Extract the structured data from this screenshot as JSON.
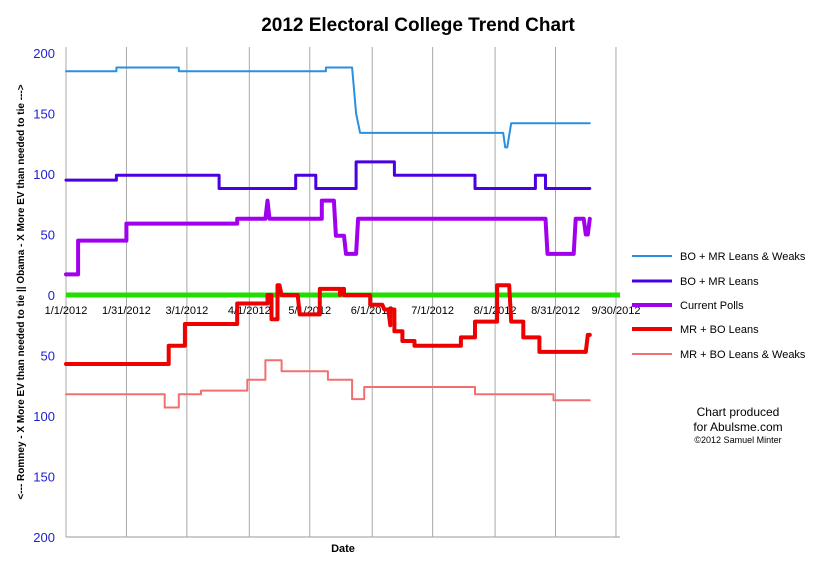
{
  "chart_data": {
    "type": "line",
    "title": "2012 Electoral College Trend Chart",
    "xlabel": "Date",
    "ylabel": "<--- Romney - X More EV than needed to tie ||  Obama - X More EV than needed to tie --->",
    "xlim": [
      "2012-01-01",
      "2012-10-02"
    ],
    "ylim": [
      -200,
      200
    ],
    "x_tick_labels": [
      "1/1/2012",
      "1/31/2012",
      "3/1/2012",
      "4/1/2012",
      "5/1/2012",
      "6/1/2012",
      "7/1/2012",
      "8/1/2012",
      "8/31/2012",
      "9/30/2012"
    ],
    "x_ticks": [
      "2012-01-01",
      "2012-01-31",
      "2012-03-01",
      "2012-04-01",
      "2012-05-01",
      "2012-06-01",
      "2012-07-01",
      "2012-08-01",
      "2012-08-31",
      "2012-09-30"
    ],
    "y_ticks": [
      200,
      150,
      100,
      50,
      0,
      -50,
      -100,
      -150,
      -200
    ],
    "y_tick_labels": [
      "200",
      "150",
      "100",
      "50",
      "0",
      "50",
      "100",
      "150",
      "200"
    ],
    "zero_line": {
      "color": "#22dd00"
    },
    "legend_position": "right",
    "series": [
      {
        "name": "BO + MR Leans & Weaks",
        "color": "#2b8fe0",
        "width": 2,
        "points": [
          [
            "2012-01-01",
            185
          ],
          [
            "2012-01-26",
            185
          ],
          [
            "2012-01-26",
            188
          ],
          [
            "2012-02-26",
            188
          ],
          [
            "2012-02-26",
            185
          ],
          [
            "2012-05-09",
            185
          ],
          [
            "2012-05-09",
            188
          ],
          [
            "2012-05-22",
            188
          ],
          [
            "2012-05-24",
            150
          ],
          [
            "2012-05-26",
            134
          ],
          [
            "2012-08-05",
            134
          ],
          [
            "2012-08-06",
            122
          ],
          [
            "2012-08-07",
            122
          ],
          [
            "2012-08-09",
            142
          ],
          [
            "2012-09-17",
            142
          ]
        ]
      },
      {
        "name": "BO + MR Leans",
        "color": "#4a00e0",
        "width": 3,
        "points": [
          [
            "2012-01-01",
            95
          ],
          [
            "2012-01-26",
            95
          ],
          [
            "2012-01-26",
            99
          ],
          [
            "2012-03-17",
            99
          ],
          [
            "2012-03-17",
            88
          ],
          [
            "2012-04-24",
            88
          ],
          [
            "2012-04-24",
            99
          ],
          [
            "2012-05-04",
            99
          ],
          [
            "2012-05-04",
            88
          ],
          [
            "2012-05-24",
            88
          ],
          [
            "2012-05-24",
            110
          ],
          [
            "2012-06-12",
            110
          ],
          [
            "2012-06-12",
            99
          ],
          [
            "2012-07-22",
            99
          ],
          [
            "2012-07-22",
            88
          ],
          [
            "2012-08-21",
            88
          ],
          [
            "2012-08-21",
            99
          ],
          [
            "2012-08-26",
            99
          ],
          [
            "2012-08-26",
            88
          ],
          [
            "2012-09-17",
            88
          ]
        ]
      },
      {
        "name": "Current Polls",
        "color": "#a100ee",
        "width": 4,
        "points": [
          [
            "2012-01-01",
            17
          ],
          [
            "2012-01-07",
            17
          ],
          [
            "2012-01-07",
            45
          ],
          [
            "2012-01-31",
            45
          ],
          [
            "2012-01-31",
            59
          ],
          [
            "2012-03-26",
            59
          ],
          [
            "2012-03-26",
            63
          ],
          [
            "2012-04-09",
            63
          ],
          [
            "2012-04-10",
            78
          ],
          [
            "2012-04-11",
            63
          ],
          [
            "2012-04-29",
            63
          ],
          [
            "2012-04-29",
            63
          ],
          [
            "2012-05-07",
            63
          ],
          [
            "2012-05-07",
            78
          ],
          [
            "2012-05-13",
            78
          ],
          [
            "2012-05-14",
            49
          ],
          [
            "2012-05-18",
            49
          ],
          [
            "2012-05-19",
            34
          ],
          [
            "2012-05-24",
            34
          ],
          [
            "2012-05-25",
            63
          ],
          [
            "2012-08-26",
            63
          ],
          [
            "2012-08-27",
            34
          ],
          [
            "2012-09-09",
            34
          ],
          [
            "2012-09-10",
            63
          ],
          [
            "2012-09-14",
            63
          ],
          [
            "2012-09-15",
            50
          ],
          [
            "2012-09-16",
            50
          ],
          [
            "2012-09-17",
            63
          ]
        ]
      },
      {
        "name": "MR + BO Leans",
        "color": "#ee0000",
        "width": 4,
        "points": [
          [
            "2012-01-01",
            -57
          ],
          [
            "2012-02-21",
            -57
          ],
          [
            "2012-02-21",
            -42
          ],
          [
            "2012-02-29",
            -42
          ],
          [
            "2012-02-29",
            -24
          ],
          [
            "2012-03-26",
            -24
          ],
          [
            "2012-03-26",
            -7
          ],
          [
            "2012-04-10",
            -7
          ],
          [
            "2012-04-10",
            0
          ],
          [
            "2012-04-12",
            0
          ],
          [
            "2012-04-12",
            -20
          ],
          [
            "2012-04-15",
            -20
          ],
          [
            "2012-04-15",
            8
          ],
          [
            "2012-04-16",
            8
          ],
          [
            "2012-04-17",
            0
          ],
          [
            "2012-04-25",
            0
          ],
          [
            "2012-04-26",
            -16
          ],
          [
            "2012-05-06",
            -16
          ],
          [
            "2012-05-06",
            5
          ],
          [
            "2012-05-16",
            5
          ],
          [
            "2012-05-16",
            0
          ],
          [
            "2012-05-17",
            5
          ],
          [
            "2012-05-18",
            5
          ],
          [
            "2012-05-18",
            0
          ],
          [
            "2012-05-31",
            0
          ],
          [
            "2012-05-31",
            -8
          ],
          [
            "2012-06-06",
            -8
          ],
          [
            "2012-06-07",
            -12
          ],
          [
            "2012-06-09",
            -12
          ],
          [
            "2012-06-10",
            -25
          ],
          [
            "2012-06-10",
            -12
          ],
          [
            "2012-06-12",
            -12
          ],
          [
            "2012-06-12",
            -30
          ],
          [
            "2012-06-16",
            -30
          ],
          [
            "2012-06-16",
            -38
          ],
          [
            "2012-06-22",
            -38
          ],
          [
            "2012-06-22",
            -42
          ],
          [
            "2012-07-15",
            -42
          ],
          [
            "2012-07-15",
            -35
          ],
          [
            "2012-07-22",
            -35
          ],
          [
            "2012-07-22",
            -22
          ],
          [
            "2012-08-02",
            -22
          ],
          [
            "2012-08-02",
            8
          ],
          [
            "2012-08-08",
            8
          ],
          [
            "2012-08-09",
            -22
          ],
          [
            "2012-08-15",
            -22
          ],
          [
            "2012-08-15",
            -35
          ],
          [
            "2012-08-23",
            -35
          ],
          [
            "2012-08-23",
            -47
          ],
          [
            "2012-09-15",
            -47
          ],
          [
            "2012-09-16",
            -33
          ],
          [
            "2012-09-17",
            -33
          ]
        ]
      },
      {
        "name": "MR + BO Leans & Weaks",
        "color": "#f07070",
        "width": 2,
        "points": [
          [
            "2012-01-01",
            -82
          ],
          [
            "2012-02-19",
            -82
          ],
          [
            "2012-02-19",
            -93
          ],
          [
            "2012-02-26",
            -93
          ],
          [
            "2012-02-26",
            -82
          ],
          [
            "2012-03-08",
            -82
          ],
          [
            "2012-03-08",
            -79
          ],
          [
            "2012-03-31",
            -79
          ],
          [
            "2012-03-31",
            -70
          ],
          [
            "2012-04-09",
            -70
          ],
          [
            "2012-04-09",
            -54
          ],
          [
            "2012-04-17",
            -54
          ],
          [
            "2012-04-17",
            -63
          ],
          [
            "2012-05-10",
            -63
          ],
          [
            "2012-05-10",
            -70
          ],
          [
            "2012-05-22",
            -70
          ],
          [
            "2012-05-22",
            -86
          ],
          [
            "2012-05-28",
            -86
          ],
          [
            "2012-05-28",
            -76
          ],
          [
            "2012-07-22",
            -76
          ],
          [
            "2012-07-22",
            -82
          ],
          [
            "2012-08-30",
            -82
          ],
          [
            "2012-08-30",
            -87
          ],
          [
            "2012-09-17",
            -87
          ]
        ]
      }
    ]
  },
  "credit": {
    "line1": "Chart produced",
    "line2": "for Abulsme.com",
    "line3": "©2012 Samuel Minter"
  }
}
